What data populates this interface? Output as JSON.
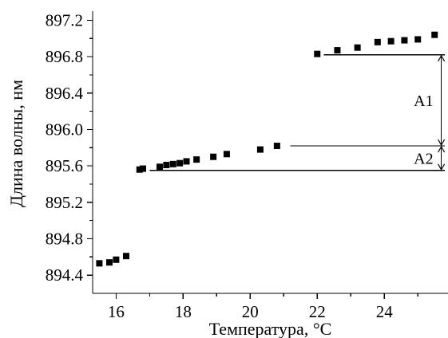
{
  "chart_data": {
    "type": "scatter",
    "xlabel": "Температура, °C",
    "ylabel": "Длина волны, нм",
    "xlim": [
      15.3,
      25.9
    ],
    "ylim": [
      894.2,
      897.3
    ],
    "xticks": [
      16,
      18,
      20,
      22,
      24
    ],
    "yticks": [
      894.4,
      894.8,
      895.2,
      895.6,
      896.0,
      896.4,
      896.8,
      897.2
    ],
    "xtick_labels": [
      "16",
      "18",
      "20",
      "22",
      "24"
    ],
    "ytick_labels": [
      "894.4",
      "894.8",
      "895.2",
      "895.6",
      "896.0",
      "896.4",
      "896.8",
      "897.2"
    ],
    "series": [
      {
        "points": [
          {
            "x": 15.5,
            "y": 894.53
          },
          {
            "x": 15.8,
            "y": 894.54
          },
          {
            "x": 16.0,
            "y": 894.57
          },
          {
            "x": 16.3,
            "y": 894.61
          },
          {
            "x": 16.7,
            "y": 895.56
          },
          {
            "x": 16.8,
            "y": 895.57
          },
          {
            "x": 17.3,
            "y": 895.59
          },
          {
            "x": 17.5,
            "y": 895.61
          },
          {
            "x": 17.7,
            "y": 895.62
          },
          {
            "x": 17.9,
            "y": 895.63
          },
          {
            "x": 18.1,
            "y": 895.65
          },
          {
            "x": 18.4,
            "y": 895.67
          },
          {
            "x": 18.9,
            "y": 895.7
          },
          {
            "x": 19.3,
            "y": 895.73
          },
          {
            "x": 20.3,
            "y": 895.78
          },
          {
            "x": 20.8,
            "y": 895.82
          },
          {
            "x": 22.0,
            "y": 896.83
          },
          {
            "x": 22.6,
            "y": 896.87
          },
          {
            "x": 23.2,
            "y": 896.9
          },
          {
            "x": 23.8,
            "y": 896.96
          },
          {
            "x": 24.2,
            "y": 896.97
          },
          {
            "x": 24.6,
            "y": 896.98
          },
          {
            "x": 25.0,
            "y": 896.99
          },
          {
            "x": 25.5,
            "y": 897.04
          }
        ]
      }
    ],
    "guides": [
      {
        "x1": 17.0,
        "x2": 25.8,
        "y": 895.55
      },
      {
        "x1": 21.2,
        "x2": 25.8,
        "y": 895.82
      },
      {
        "x1": 22.2,
        "x2": 25.8,
        "y": 896.82
      }
    ],
    "annotations": [
      {
        "label": "A1",
        "x": 25.7,
        "y1": 895.82,
        "y2": 896.82
      },
      {
        "label": "A2",
        "x": 25.7,
        "y1": 895.55,
        "y2": 895.82
      }
    ],
    "grid": false,
    "legend": "none",
    "marker": "square",
    "colors": {
      "axis": "#000000",
      "marker": "#000000",
      "guide": "#000000"
    }
  }
}
